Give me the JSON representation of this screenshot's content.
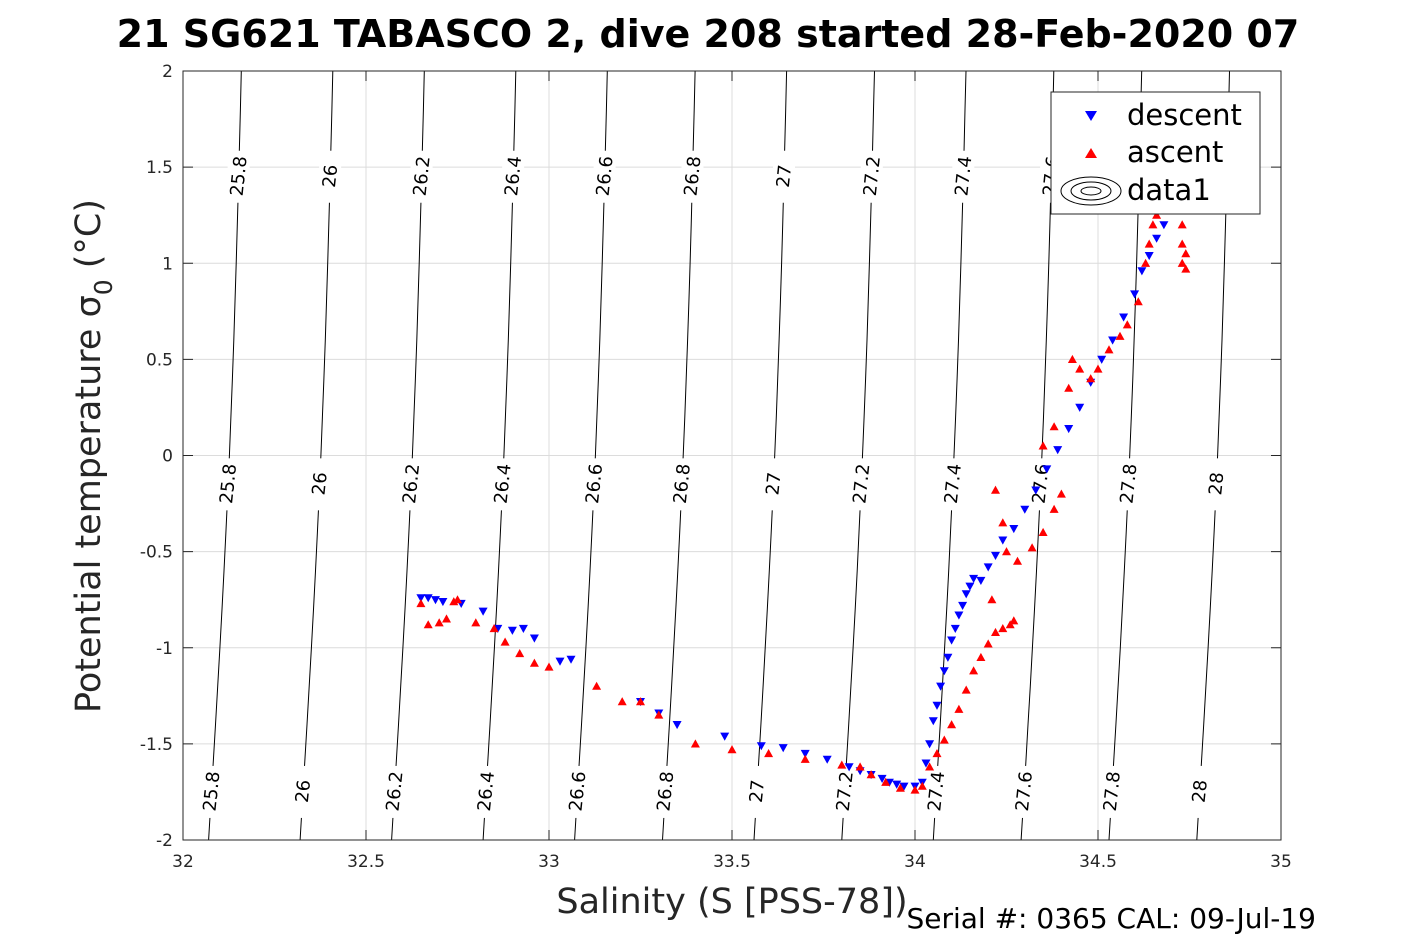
{
  "chart_data": {
    "type": "scatter",
    "title": "21 SG621 TABASCO 2, dive 208 started 28-Feb-2020 07",
    "xlabel": "Salinity (S [PSS-78])",
    "ylabel_main": "Potential temperature σ",
    "ylabel_sub": "0",
    "ylabel_unit": " (°C)",
    "xlim": [
      32,
      35
    ],
    "ylim": [
      -2,
      2
    ],
    "xticks": [
      32,
      32.5,
      33,
      33.5,
      34,
      34.5,
      35
    ],
    "xtick_labels": [
      "32",
      "32.5",
      "33",
      "33.5",
      "34",
      "34.5",
      "35"
    ],
    "yticks": [
      -2,
      -1.5,
      -1,
      -0.5,
      0,
      0.5,
      1,
      1.5,
      2
    ],
    "ytick_labels": [
      "-2",
      "-1.5",
      "-1",
      "-0.5",
      "0",
      "0.5",
      "1",
      "1.5",
      "2"
    ],
    "grid": true,
    "legend_position": "top-right",
    "legend": [
      {
        "name": "descent",
        "marker": "triangle-down",
        "color": "#0000ff"
      },
      {
        "name": "ascent",
        "marker": "triangle-up",
        "color": "#ff0000"
      },
      {
        "name": "data1",
        "marker": "contour",
        "color": "#000000"
      }
    ],
    "footer": "Serial #: 0365  CAL: 09-Jul-19",
    "contours": [
      {
        "level": "25.8",
        "s_at_min": 32.07,
        "s_at_max": 32.05
      },
      {
        "level": "26",
        "s_at_min": 32.32,
        "s_at_max": 32.3
      },
      {
        "level": "26.2",
        "s_at_min": 32.57,
        "s_at_max": 32.55
      },
      {
        "level": "26.4",
        "s_at_min": 32.82,
        "s_at_max": 32.8
      },
      {
        "level": "26.6",
        "s_at_min": 33.07,
        "s_at_max": 33.05
      },
      {
        "level": "26.8",
        "s_at_min": 33.31,
        "s_at_max": 33.29
      },
      {
        "level": "27",
        "s_at_min": 33.56,
        "s_at_max": 33.54
      },
      {
        "level": "27.2",
        "s_at_min": 33.8,
        "s_at_max": 33.78
      },
      {
        "level": "27.4",
        "s_at_min": 34.05,
        "s_at_max": 34.03
      },
      {
        "level": "27.6",
        "s_at_min": 34.29,
        "s_at_max": 34.27
      },
      {
        "level": "27.8",
        "s_at_min": 34.53,
        "s_at_max": 34.51
      },
      {
        "level": "28",
        "s_at_min": 34.77,
        "s_at_max": 34.75
      }
    ],
    "series": [
      {
        "name": "descent",
        "color": "#0000ff",
        "marker": "triangle-down",
        "points": [
          [
            32.65,
            -0.74
          ],
          [
            32.67,
            -0.74
          ],
          [
            32.69,
            -0.75
          ],
          [
            32.71,
            -0.76
          ],
          [
            32.76,
            -0.77
          ],
          [
            32.82,
            -0.81
          ],
          [
            32.86,
            -0.9
          ],
          [
            32.9,
            -0.91
          ],
          [
            32.93,
            -0.9
          ],
          [
            32.96,
            -0.95
          ],
          [
            33.03,
            -1.07
          ],
          [
            33.06,
            -1.06
          ],
          [
            33.25,
            -1.28
          ],
          [
            33.3,
            -1.34
          ],
          [
            33.35,
            -1.4
          ],
          [
            33.48,
            -1.46
          ],
          [
            33.58,
            -1.51
          ],
          [
            33.64,
            -1.52
          ],
          [
            33.7,
            -1.55
          ],
          [
            33.76,
            -1.58
          ],
          [
            33.82,
            -1.62
          ],
          [
            33.85,
            -1.64
          ],
          [
            33.88,
            -1.66
          ],
          [
            33.91,
            -1.68
          ],
          [
            33.93,
            -1.7
          ],
          [
            33.95,
            -1.71
          ],
          [
            33.97,
            -1.72
          ],
          [
            34.0,
            -1.72
          ],
          [
            34.02,
            -1.7
          ],
          [
            34.03,
            -1.6
          ],
          [
            34.04,
            -1.5
          ],
          [
            34.05,
            -1.38
          ],
          [
            34.06,
            -1.3
          ],
          [
            34.07,
            -1.2
          ],
          [
            34.08,
            -1.12
          ],
          [
            34.09,
            -1.05
          ],
          [
            34.1,
            -0.96
          ],
          [
            34.11,
            -0.9
          ],
          [
            34.12,
            -0.83
          ],
          [
            34.13,
            -0.78
          ],
          [
            34.14,
            -0.72
          ],
          [
            34.15,
            -0.68
          ],
          [
            34.16,
            -0.64
          ],
          [
            34.18,
            -0.65
          ],
          [
            34.2,
            -0.58
          ],
          [
            34.22,
            -0.52
          ],
          [
            34.24,
            -0.44
          ],
          [
            34.27,
            -0.38
          ],
          [
            34.3,
            -0.28
          ],
          [
            34.33,
            -0.18
          ],
          [
            34.36,
            -0.07
          ],
          [
            34.39,
            0.03
          ],
          [
            34.42,
            0.14
          ],
          [
            34.45,
            0.25
          ],
          [
            34.48,
            0.38
          ],
          [
            34.51,
            0.5
          ],
          [
            34.54,
            0.6
          ],
          [
            34.57,
            0.72
          ],
          [
            34.6,
            0.84
          ],
          [
            34.62,
            0.96
          ],
          [
            34.64,
            1.04
          ],
          [
            34.66,
            1.13
          ],
          [
            34.68,
            1.2
          ],
          [
            34.7,
            1.28
          ],
          [
            34.72,
            1.34
          ]
        ]
      },
      {
        "name": "ascent",
        "color": "#ff0000",
        "marker": "triangle-up",
        "points": [
          [
            32.65,
            -0.77
          ],
          [
            32.67,
            -0.88
          ],
          [
            32.7,
            -0.87
          ],
          [
            32.72,
            -0.85
          ],
          [
            32.74,
            -0.76
          ],
          [
            32.75,
            -0.75
          ],
          [
            32.8,
            -0.87
          ],
          [
            32.85,
            -0.9
          ],
          [
            32.88,
            -0.97
          ],
          [
            32.92,
            -1.03
          ],
          [
            32.96,
            -1.08
          ],
          [
            33.0,
            -1.1
          ],
          [
            33.13,
            -1.2
          ],
          [
            33.2,
            -1.28
          ],
          [
            33.25,
            -1.28
          ],
          [
            33.3,
            -1.35
          ],
          [
            33.4,
            -1.5
          ],
          [
            33.5,
            -1.53
          ],
          [
            33.6,
            -1.55
          ],
          [
            33.7,
            -1.58
          ],
          [
            33.8,
            -1.61
          ],
          [
            33.85,
            -1.62
          ],
          [
            33.88,
            -1.66
          ],
          [
            33.92,
            -1.7
          ],
          [
            33.96,
            -1.73
          ],
          [
            34.0,
            -1.74
          ],
          [
            34.02,
            -1.72
          ],
          [
            34.04,
            -1.62
          ],
          [
            34.06,
            -1.55
          ],
          [
            34.08,
            -1.48
          ],
          [
            34.1,
            -1.4
          ],
          [
            34.12,
            -1.32
          ],
          [
            34.14,
            -1.22
          ],
          [
            34.16,
            -1.12
          ],
          [
            34.18,
            -1.05
          ],
          [
            34.2,
            -0.98
          ],
          [
            34.22,
            -0.92
          ],
          [
            34.24,
            -0.9
          ],
          [
            34.26,
            -0.88
          ],
          [
            34.27,
            -0.86
          ],
          [
            34.21,
            -0.75
          ],
          [
            34.22,
            -0.18
          ],
          [
            34.24,
            -0.35
          ],
          [
            34.25,
            -0.5
          ],
          [
            34.28,
            -0.55
          ],
          [
            34.32,
            -0.48
          ],
          [
            34.35,
            -0.4
          ],
          [
            34.38,
            -0.28
          ],
          [
            34.4,
            -0.2
          ],
          [
            34.35,
            0.05
          ],
          [
            34.38,
            0.15
          ],
          [
            34.42,
            0.35
          ],
          [
            34.45,
            0.45
          ],
          [
            34.43,
            0.5
          ],
          [
            34.48,
            0.4
          ],
          [
            34.5,
            0.45
          ],
          [
            34.53,
            0.55
          ],
          [
            34.56,
            0.62
          ],
          [
            34.58,
            0.68
          ],
          [
            34.61,
            0.8
          ],
          [
            34.63,
            1.0
          ],
          [
            34.64,
            1.1
          ],
          [
            34.65,
            1.2
          ],
          [
            34.66,
            1.25
          ],
          [
            34.73,
            1.3
          ],
          [
            34.73,
            1.2
          ],
          [
            34.73,
            1.1
          ],
          [
            34.73,
            1.0
          ],
          [
            34.74,
            1.28
          ],
          [
            34.74,
            1.05
          ],
          [
            34.74,
            0.97
          ]
        ]
      }
    ]
  }
}
